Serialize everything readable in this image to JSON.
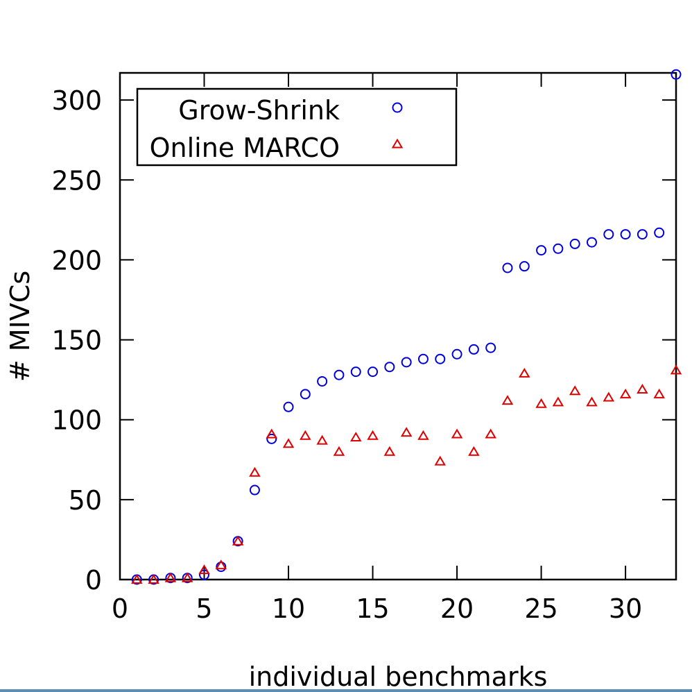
{
  "chart_data": {
    "type": "scatter",
    "xlabel": "individual benchmarks",
    "ylabel": "# MIVCs",
    "xlim": [
      0,
      33
    ],
    "ylim": [
      0,
      317
    ],
    "xticks": [
      0,
      5,
      10,
      15,
      20,
      25,
      30
    ],
    "yticks": [
      0,
      50,
      100,
      150,
      200,
      250,
      300
    ],
    "grid": false,
    "legend_position": "top-left",
    "series": [
      {
        "name": "Grow-Shrink",
        "marker": "circle",
        "color": "#0000dd",
        "x": [
          1,
          2,
          3,
          4,
          5,
          6,
          7,
          8,
          9,
          10,
          11,
          12,
          13,
          14,
          15,
          16,
          17,
          18,
          19,
          20,
          21,
          22,
          23,
          24,
          25,
          26,
          27,
          28,
          29,
          30,
          31,
          32,
          33
        ],
        "y": [
          0,
          0,
          1,
          1,
          3,
          8,
          24,
          56,
          88,
          108,
          116,
          124,
          128,
          130,
          130,
          133,
          136,
          138,
          138,
          141,
          144,
          145,
          195,
          196,
          206,
          207,
          210,
          211,
          216,
          216,
          216,
          217,
          316
        ]
      },
      {
        "name": "Online MARCO",
        "marker": "triangle",
        "color": "#dd0000",
        "x": [
          1,
          2,
          3,
          4,
          5,
          6,
          7,
          8,
          9,
          10,
          11,
          12,
          13,
          14,
          15,
          16,
          17,
          18,
          19,
          20,
          21,
          22,
          23,
          24,
          25,
          26,
          27,
          28,
          29,
          30,
          31,
          32,
          33
        ],
        "y": [
          0,
          0,
          1,
          1,
          6,
          9,
          24,
          67,
          91,
          85,
          90,
          87,
          80,
          89,
          90,
          80,
          92,
          90,
          74,
          91,
          80,
          91,
          112,
          129,
          110,
          111,
          118,
          111,
          114,
          116,
          119,
          116,
          131
        ]
      }
    ]
  }
}
